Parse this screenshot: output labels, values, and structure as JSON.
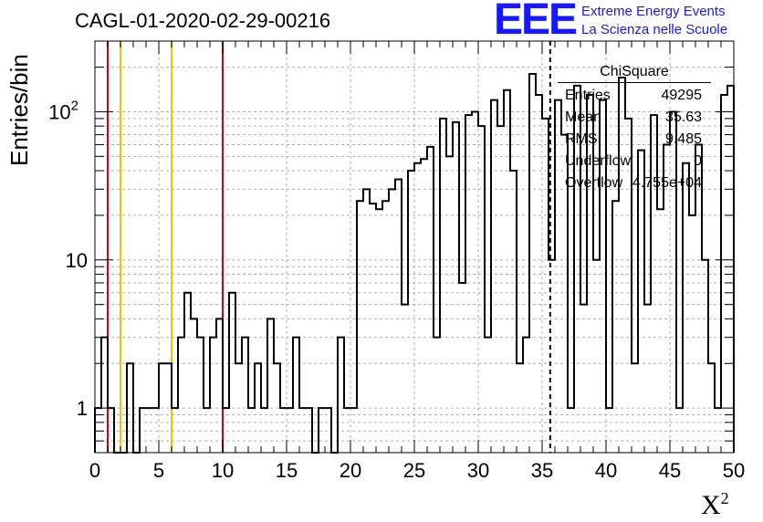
{
  "title": "CAGL-01-2020-02-29-00216",
  "logo": {
    "mark": "EEE",
    "line1": "Extreme Energy Events",
    "line2": "La Scienza nelle Scuole",
    "color": "#1818ff"
  },
  "stats": {
    "title": "ChiSquare",
    "rows": [
      {
        "key": "Entries",
        "value": "49295"
      },
      {
        "key": "Mean",
        "value": "35.63"
      },
      {
        "key": "RMS",
        "value": "9.485"
      },
      {
        "key": "Underflow",
        "value": "0"
      },
      {
        "key": "Overflow",
        "value": "4.755e+04"
      }
    ]
  },
  "chart_data": {
    "type": "bar",
    "title": "CAGL-01-2020-02-29-00216",
    "xlabel": "X",
    "xlabel_sup": "2",
    "ylabel": "Entries/bin",
    "yscale": "log",
    "xlim": [
      0,
      50
    ],
    "ylim": [
      0.5,
      300
    ],
    "bin_width": 0.5,
    "x_ticks": [
      "0",
      "5",
      "10",
      "15",
      "20",
      "25",
      "30",
      "35",
      "40",
      "45",
      "50"
    ],
    "y_ticks": [
      {
        "value": 1,
        "label": "1",
        "sup": ""
      },
      {
        "value": 10,
        "label": "10",
        "sup": ""
      },
      {
        "value": 100,
        "label": "10",
        "sup": "2"
      }
    ],
    "grid": true,
    "counts": [
      1,
      3,
      1,
      0,
      0,
      2,
      0,
      1,
      1,
      1,
      2,
      2,
      1,
      3,
      6,
      4,
      3,
      1,
      3,
      4,
      1,
      6,
      2,
      3,
      1,
      2,
      1,
      4,
      2,
      1,
      1,
      3,
      1,
      1,
      0,
      1,
      1,
      0,
      3,
      1,
      1,
      25,
      30,
      24,
      22,
      25,
      30,
      35,
      5,
      40,
      45,
      48,
      58,
      3,
      90,
      50,
      85,
      7,
      95,
      100,
      80,
      3,
      120,
      80,
      140,
      40,
      2,
      3,
      180,
      130,
      90,
      10,
      120,
      70,
      1,
      150,
      5,
      130,
      10,
      120,
      1,
      25,
      170,
      90,
      2,
      55,
      5,
      95,
      22,
      60,
      100,
      1,
      45,
      20,
      60,
      10,
      2,
      1,
      130,
      150
    ],
    "lines": [
      {
        "x": 1,
        "color": "#dd0000",
        "style": "solid"
      },
      {
        "x": 2,
        "color": "#f4c000",
        "style": "solid"
      },
      {
        "x": 6,
        "color": "#f4c000",
        "style": "solid"
      },
      {
        "x": 10,
        "color": "#dd0000",
        "style": "solid"
      },
      {
        "x": 35.63,
        "color": "#000000",
        "style": "dashed"
      }
    ]
  }
}
